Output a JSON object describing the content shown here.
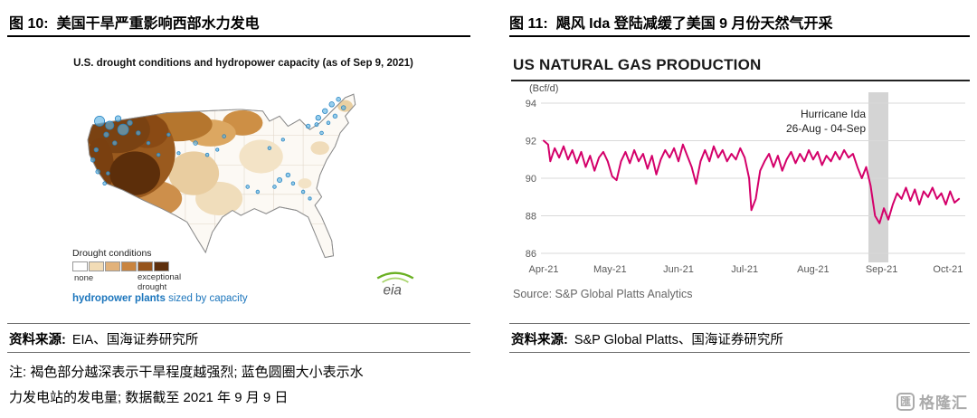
{
  "left_figure": {
    "label": "图 10:",
    "title": "美国干旱严重影响西部水力发电",
    "map": {
      "title": "U.S. drought conditions and hydropower capacity (as of Sep 9, 2021)",
      "legend_title": "Drought conditions",
      "legend_labels": {
        "min": "none",
        "max_line1": "exceptional",
        "max_line2": "drought"
      },
      "legend_colors": [
        "#ffffff",
        "#f2dcb6",
        "#e2b27a",
        "#c9843f",
        "#96541c",
        "#5e2f0c"
      ],
      "hydro_bold": "hydropower plants",
      "hydro_rest": " sized by capacity",
      "logo_text": "eia"
    },
    "source_label": "资料来源:",
    "source": "EIA、国海证券研究所",
    "note_line1": "注: 褐色部分越深表示干旱程度越强烈; 蓝色圆圈大小表示水",
    "note_line2": "力发电站的发电量; 数据截至 2021 年 9 月 9 日"
  },
  "right_figure": {
    "label": "图 11:",
    "title": "飓风 Ida 登陆减缓了美国 9 月份天然气开采",
    "source_label": "资料来源:",
    "source": "S&P Global Platts、国海证券研究所"
  },
  "watermark": {
    "icon_glyph": "匯",
    "text": "格隆汇"
  },
  "chart_data": [
    {
      "type": "heatmap",
      "subtype": "choropleth-map",
      "title": "U.S. drought conditions and hydropower capacity (as of Sep 9, 2021)",
      "region": "United States",
      "legend": {
        "title": "Drought conditions",
        "min": "none",
        "max": "exceptional drought"
      },
      "overlay": "hydropower plants sized by capacity (blue circles)",
      "reading": "Darker brown = more severe drought; severe-to-exceptional drought covers most of the western U.S.; blue hydropower-plant circles cluster in the Pacific Northwest, Northeast and Tennessee Valley."
    },
    {
      "type": "line",
      "title": "US NATURAL GAS PRODUCTION",
      "ylabel": "(Bcf/d)",
      "ylim": [
        86,
        94
      ],
      "yticks": [
        94,
        92,
        90,
        88,
        86
      ],
      "xlim": [
        0,
        190
      ],
      "x_unit": "days since 01-Apr-2021",
      "xtick_positions": [
        0,
        30,
        61,
        91,
        122,
        153,
        183
      ],
      "xtick_labels": [
        "Apr-21",
        "May-21",
        "Jun-21",
        "Jul-21",
        "Aug-21",
        "Sep-21",
        "Oct-21"
      ],
      "grid": "horizontal",
      "band": {
        "x_start": 147,
        "x_end": 156,
        "label_line1": "Hurricane Ida",
        "label_line2": "26-Aug - 04-Sep",
        "color": "#d4d4d4"
      },
      "series": [
        {
          "name": "US natural gas production (Bcf/d)",
          "color": "#d4006a",
          "points": [
            [
              0,
              92.0
            ],
            [
              2,
              91.8
            ],
            [
              3,
              90.9
            ],
            [
              5,
              91.6
            ],
            [
              7,
              91.1
            ],
            [
              9,
              91.7
            ],
            [
              11,
              91.0
            ],
            [
              13,
              91.5
            ],
            [
              15,
              90.8
            ],
            [
              17,
              91.4
            ],
            [
              19,
              90.6
            ],
            [
              21,
              91.2
            ],
            [
              23,
              90.4
            ],
            [
              25,
              91.1
            ],
            [
              27,
              91.4
            ],
            [
              29,
              90.9
            ],
            [
              31,
              90.1
            ],
            [
              33,
              89.9
            ],
            [
              35,
              90.9
            ],
            [
              37,
              91.4
            ],
            [
              39,
              90.8
            ],
            [
              41,
              91.5
            ],
            [
              43,
              90.9
            ],
            [
              45,
              91.3
            ],
            [
              47,
              90.5
            ],
            [
              49,
              91.2
            ],
            [
              51,
              90.2
            ],
            [
              53,
              91.0
            ],
            [
              55,
              91.5
            ],
            [
              57,
              91.1
            ],
            [
              59,
              91.6
            ],
            [
              61,
              90.9
            ],
            [
              63,
              91.8
            ],
            [
              65,
              91.2
            ],
            [
              67,
              90.6
            ],
            [
              69,
              89.7
            ],
            [
              71,
              90.9
            ],
            [
              73,
              91.5
            ],
            [
              75,
              90.9
            ],
            [
              77,
              91.7
            ],
            [
              79,
              91.1
            ],
            [
              81,
              91.5
            ],
            [
              83,
              90.9
            ],
            [
              85,
              91.3
            ],
            [
              87,
              91.0
            ],
            [
              89,
              91.6
            ],
            [
              91,
              91.1
            ],
            [
              93,
              90.0
            ],
            [
              94,
              88.3
            ],
            [
              96,
              88.9
            ],
            [
              98,
              90.4
            ],
            [
              100,
              90.9
            ],
            [
              102,
              91.3
            ],
            [
              104,
              90.6
            ],
            [
              106,
              91.2
            ],
            [
              108,
              90.4
            ],
            [
              110,
              91.0
            ],
            [
              112,
              91.4
            ],
            [
              114,
              90.8
            ],
            [
              116,
              91.3
            ],
            [
              118,
              90.9
            ],
            [
              120,
              91.5
            ],
            [
              122,
              91.0
            ],
            [
              124,
              91.4
            ],
            [
              126,
              90.7
            ],
            [
              128,
              91.2
            ],
            [
              130,
              90.9
            ],
            [
              132,
              91.4
            ],
            [
              134,
              91.0
            ],
            [
              136,
              91.5
            ],
            [
              138,
              91.1
            ],
            [
              140,
              91.3
            ],
            [
              142,
              90.6
            ],
            [
              144,
              90.0
            ],
            [
              146,
              90.6
            ],
            [
              148,
              89.6
            ],
            [
              150,
              88.0
            ],
            [
              152,
              87.6
            ],
            [
              154,
              88.4
            ],
            [
              156,
              87.8
            ],
            [
              158,
              88.6
            ],
            [
              160,
              89.2
            ],
            [
              162,
              88.9
            ],
            [
              164,
              89.5
            ],
            [
              166,
              88.8
            ],
            [
              168,
              89.4
            ],
            [
              170,
              88.6
            ],
            [
              172,
              89.3
            ],
            [
              174,
              89.0
            ],
            [
              176,
              89.5
            ],
            [
              178,
              88.9
            ],
            [
              180,
              89.2
            ],
            [
              182,
              88.6
            ],
            [
              184,
              89.3
            ],
            [
              186,
              88.7
            ],
            [
              188,
              88.9
            ]
          ]
        }
      ],
      "source": "Source: S&P Global Platts Analytics"
    }
  ]
}
